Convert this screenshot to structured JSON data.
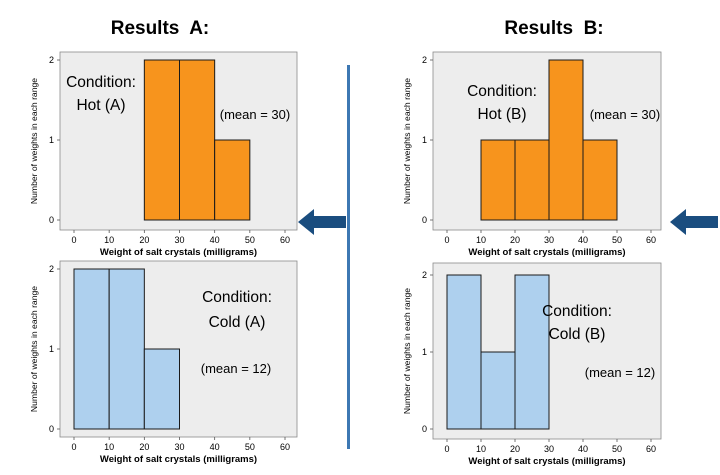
{
  "headings": {
    "left": "Results  A:",
    "right": "Results  B:"
  },
  "colors": {
    "hot": "#F7941D",
    "cold": "#AED0EE",
    "panel": "#EDEDED",
    "arrow": "#1A4D7F",
    "divider": "#3D78B3"
  },
  "chart_data": [
    {
      "type": "bar",
      "id": "hot-a",
      "xlabel": "Weight of salt crystals (milligrams)",
      "ylabel": "Number of weights in each range",
      "x_ticks": [
        0,
        10,
        20,
        30,
        40,
        50,
        60
      ],
      "y_ticks": [
        0,
        1,
        2
      ],
      "xlim": [
        0,
        60
      ],
      "ylim": [
        0,
        2
      ],
      "bins": [
        [
          20,
          30
        ],
        [
          30,
          40
        ],
        [
          40,
          50
        ]
      ],
      "values": [
        2,
        2,
        1
      ],
      "color": "#F7941D",
      "annotations": [
        "Condition:",
        "Hot (A)",
        "(mean = 30)"
      ]
    },
    {
      "type": "bar",
      "id": "hot-b",
      "xlabel": "Weight of salt crystals (milligrams)",
      "ylabel": "Number of weights in each range",
      "x_ticks": [
        0,
        10,
        20,
        30,
        40,
        50,
        60
      ],
      "y_ticks": [
        0,
        1,
        2
      ],
      "xlim": [
        0,
        60
      ],
      "ylim": [
        0,
        2
      ],
      "bins": [
        [
          10,
          20
        ],
        [
          20,
          30
        ],
        [
          30,
          40
        ],
        [
          40,
          50
        ]
      ],
      "values": [
        1,
        1,
        2,
        1
      ],
      "color": "#F7941D",
      "annotations": [
        "Condition:",
        "Hot (B)",
        "(mean = 30)"
      ]
    },
    {
      "type": "bar",
      "id": "cold-a",
      "xlabel": "Weight of salt crystals (milligrams)",
      "ylabel": "Number of weights in each range",
      "x_ticks": [
        0,
        10,
        20,
        30,
        40,
        50,
        60
      ],
      "y_ticks": [
        0,
        1,
        2
      ],
      "xlim": [
        0,
        60
      ],
      "ylim": [
        0,
        2
      ],
      "bins": [
        [
          0,
          10
        ],
        [
          10,
          20
        ],
        [
          20,
          30
        ]
      ],
      "values": [
        2,
        2,
        1
      ],
      "color": "#AED0EE",
      "annotations": [
        "Condition:",
        "Cold (A)",
        "(mean = 12)"
      ]
    },
    {
      "type": "bar",
      "id": "cold-b",
      "xlabel": "Weight of salt crystals (milligrams)",
      "ylabel": "Number of weights in each range",
      "x_ticks": [
        0,
        10,
        20,
        30,
        40,
        50,
        60
      ],
      "y_ticks": [
        0,
        1,
        2
      ],
      "xlim": [
        0,
        60
      ],
      "ylim": [
        0,
        2
      ],
      "bins": [
        [
          0,
          10
        ],
        [
          10,
          20
        ],
        [
          20,
          30
        ]
      ],
      "values": [
        2,
        1,
        2
      ],
      "color": "#AED0EE",
      "annotations": [
        "Condition:",
        "Cold (B)",
        "(mean = 12)"
      ]
    }
  ]
}
